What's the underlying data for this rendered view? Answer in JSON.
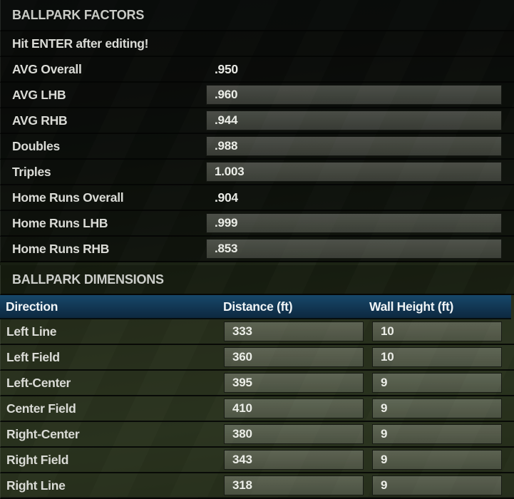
{
  "panel": {
    "factors": {
      "title": "BALLPARK FACTORS",
      "notice": "Hit ENTER after editing!",
      "rows": [
        {
          "label": "AVG Overall",
          "value": ".950",
          "editable": false
        },
        {
          "label": "AVG LHB",
          "value": ".960",
          "editable": true
        },
        {
          "label": "AVG RHB",
          "value": ".944",
          "editable": true
        },
        {
          "label": "Doubles",
          "value": ".988",
          "editable": true
        },
        {
          "label": "Triples",
          "value": "1.003",
          "editable": true
        },
        {
          "label": "Home Runs Overall",
          "value": ".904",
          "editable": false
        },
        {
          "label": "Home Runs LHB",
          "value": ".999",
          "editable": true
        },
        {
          "label": "Home Runs RHB",
          "value": ".853",
          "editable": true
        }
      ]
    },
    "dimensions": {
      "title": "BALLPARK DIMENSIONS",
      "columns": [
        "Direction",
        "Distance (ft)",
        "Wall Height (ft)"
      ],
      "rows": [
        {
          "direction": "Left Line",
          "distance": "333",
          "wall_height": "10"
        },
        {
          "direction": "Left Field",
          "distance": "360",
          "wall_height": "10"
        },
        {
          "direction": "Left-Center",
          "distance": "395",
          "wall_height": "9"
        },
        {
          "direction": "Center Field",
          "distance": "410",
          "wall_height": "9"
        },
        {
          "direction": "Right-Center",
          "distance": "380",
          "wall_height": "9"
        },
        {
          "direction": "Right Field",
          "distance": "343",
          "wall_height": "9"
        },
        {
          "direction": "Right Line",
          "distance": "318",
          "wall_height": "9"
        }
      ]
    },
    "colors": {
      "table_header_blue": "#113450",
      "input_fill_olive": "#505547",
      "label_text": "#dadbd6",
      "background_green": "#242c1a"
    }
  }
}
